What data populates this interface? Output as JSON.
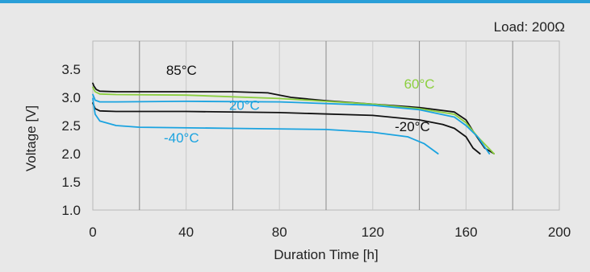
{
  "chart_data": {
    "type": "line",
    "title": "",
    "annotation": "Load: 200Ω",
    "xlabel": "Duration Time [h]",
    "ylabel": "Voltage [V]",
    "xlim": [
      0,
      200
    ],
    "ylim": [
      1.0,
      4.0
    ],
    "x_ticks": [
      "0",
      "40",
      "80",
      "120",
      "160",
      "200"
    ],
    "y_ticks": [
      "1.0",
      "1.5",
      "2.0",
      "2.5",
      "3.0",
      "3.5"
    ],
    "grid": "vertical",
    "series": [
      {
        "name": "85°C",
        "color": "#111111",
        "x": [
          0,
          0.5,
          1.5,
          3,
          10,
          30,
          60,
          75,
          85,
          100,
          120,
          140,
          155,
          160,
          163,
          168,
          172
        ],
        "y": [
          3.25,
          3.2,
          3.14,
          3.11,
          3.1,
          3.1,
          3.1,
          3.08,
          3.0,
          2.94,
          2.88,
          2.82,
          2.74,
          2.6,
          2.4,
          2.1,
          2.0
        ]
      },
      {
        "name": "60°C",
        "color": "#8ccf3f",
        "x": [
          0,
          1,
          3,
          10,
          40,
          80,
          120,
          140,
          155,
          160,
          165,
          172
        ],
        "y": [
          3.18,
          3.1,
          3.06,
          3.05,
          3.04,
          2.98,
          2.88,
          2.8,
          2.7,
          2.55,
          2.3,
          2.0
        ]
      },
      {
        "name": "20°C",
        "color": "#1aa3e0",
        "x": [
          0,
          1,
          3,
          10,
          40,
          80,
          120,
          140,
          155,
          160,
          165,
          170
        ],
        "y": [
          3.05,
          2.95,
          2.92,
          2.92,
          2.93,
          2.92,
          2.86,
          2.78,
          2.65,
          2.5,
          2.3,
          2.0
        ]
      },
      {
        "name": "-20°C",
        "color": "#111111",
        "x": [
          0,
          1,
          3,
          10,
          40,
          80,
          120,
          140,
          150,
          155,
          160,
          163,
          166
        ],
        "y": [
          2.9,
          2.8,
          2.76,
          2.75,
          2.75,
          2.73,
          2.68,
          2.6,
          2.52,
          2.45,
          2.3,
          2.1,
          2.0
        ]
      },
      {
        "name": "-40°C",
        "color": "#1aa3e0",
        "x": [
          0,
          1,
          3,
          10,
          20,
          60,
          100,
          120,
          135,
          142,
          148
        ],
        "y": [
          2.98,
          2.7,
          2.58,
          2.5,
          2.47,
          2.45,
          2.43,
          2.38,
          2.3,
          2.18,
          2.0
        ]
      }
    ],
    "series_labels": [
      {
        "text": "85°C",
        "color": "#111111",
        "x": 38,
        "y": 3.4
      },
      {
        "text": "60°C",
        "color": "#8ccf3f",
        "x": 140,
        "y": 3.16
      },
      {
        "text": "20°C",
        "color": "#1aa3e0",
        "x": 65,
        "y": 2.78
      },
      {
        "text": "-20°C",
        "color": "#111111",
        "x": 137,
        "y": 2.4
      },
      {
        "text": "-40°C",
        "color": "#1aa3e0",
        "x": 38,
        "y": 2.2
      }
    ]
  }
}
